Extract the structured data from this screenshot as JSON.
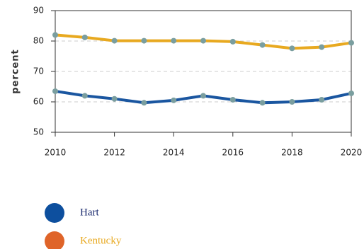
{
  "chart_data": {
    "type": "line",
    "ylabel": "percent",
    "x": [
      2010,
      2011,
      2012,
      2013,
      2014,
      2015,
      2016,
      2017,
      2018,
      2019,
      2020
    ],
    "xlim": [
      2010,
      2020
    ],
    "xticks": [
      2010,
      2012,
      2014,
      2016,
      2018,
      2020
    ],
    "ylim": [
      50,
      90
    ],
    "yticks": [
      50,
      60,
      70,
      80,
      90
    ],
    "grid": true,
    "marker_color": "#7a9e9f",
    "series": [
      {
        "name": "Hart",
        "color": "#1a56a0",
        "legend_color": "#0d4f9e",
        "values": [
          63.5,
          62,
          61,
          59.7,
          60.5,
          62,
          60.7,
          59.7,
          60,
          60.7,
          62.8
        ]
      },
      {
        "name": "Kentucky",
        "color": "#e8a920",
        "legend_color": "#df6429",
        "values": [
          82,
          81.2,
          80.1,
          80.1,
          80.1,
          80.1,
          79.8,
          78.7,
          77.6,
          78,
          79.4
        ]
      }
    ]
  }
}
